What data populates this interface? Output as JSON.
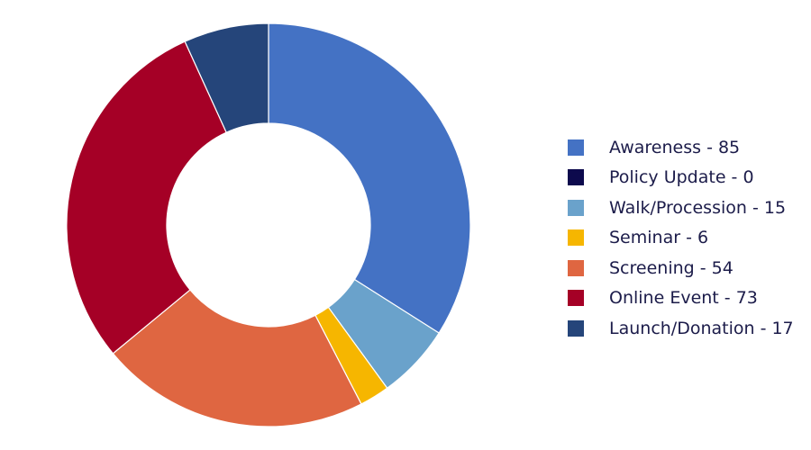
{
  "chart_data": {
    "type": "pie",
    "donut": true,
    "legend_position": "right",
    "categories": [
      "Awareness",
      "Policy Update",
      "Walk/Procession",
      "Seminar",
      "Screening",
      "Online Event",
      "Launch/Donation"
    ],
    "values": [
      85,
      0,
      15,
      6,
      54,
      73,
      17
    ],
    "colors": [
      "#4472c4",
      "#0d0a4d",
      "#6aa2cb",
      "#f6b600",
      "#df6641",
      "#a50026",
      "#25457a"
    ],
    "legend": [
      {
        "label": "Awareness - 85",
        "color": "#4472c4"
      },
      {
        "label": "Policy Update - 0",
        "color": "#0d0a4d"
      },
      {
        "label": "Walk/Procession - 15",
        "color": "#6aa2cb"
      },
      {
        "label": "Seminar - 6",
        "color": "#f6b600"
      },
      {
        "label": "Screening - 54",
        "color": "#df6641"
      },
      {
        "label": "Online Event - 73",
        "color": "#a50026"
      },
      {
        "label": "Launch/Donation - 17",
        "color": "#25457a"
      }
    ]
  }
}
